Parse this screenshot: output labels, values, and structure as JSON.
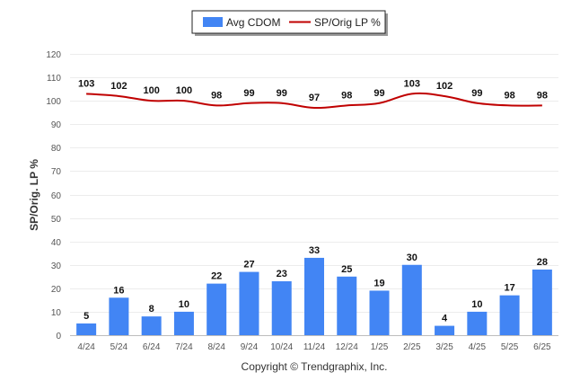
{
  "chart_data": {
    "type": "bar",
    "categories": [
      "4/24",
      "5/24",
      "6/24",
      "7/24",
      "8/24",
      "9/24",
      "10/24",
      "11/24",
      "12/24",
      "1/25",
      "2/25",
      "3/25",
      "4/25",
      "5/25",
      "6/25"
    ],
    "series": [
      {
        "name": "Avg CDOM",
        "type": "bar",
        "color": "#4285f4",
        "values": [
          5,
          16,
          8,
          10,
          22,
          27,
          23,
          33,
          25,
          19,
          30,
          4,
          10,
          17,
          28
        ]
      },
      {
        "name": "SP/Orig LP %",
        "type": "line",
        "color": "#c00000",
        "values": [
          103,
          102,
          100,
          100,
          98,
          99,
          99,
          97,
          98,
          99,
          103,
          102,
          99,
          98,
          98
        ]
      }
    ],
    "ylabel": "SP/Orig. LP %",
    "xlabel": "",
    "ylim": [
      0,
      120
    ],
    "yticks": [
      0,
      10,
      20,
      30,
      40,
      50,
      60,
      70,
      80,
      90,
      100,
      110,
      120
    ],
    "grid": true,
    "legend_position": "top-center"
  },
  "footer": {
    "copyright": "Copyright © Trendgraphix, Inc."
  }
}
